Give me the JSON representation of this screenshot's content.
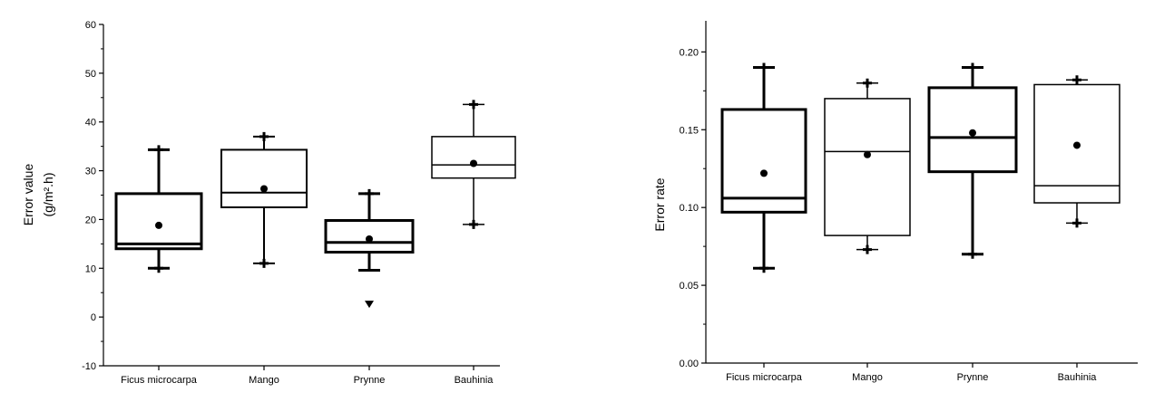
{
  "chart_data": [
    {
      "type": "box",
      "ylabel": "Error value",
      "ylabel_unit": "(g/m².h)",
      "ylim": [
        -10,
        60
      ],
      "yticks": [
        -10,
        0,
        10,
        20,
        30,
        40,
        50,
        60
      ],
      "ytick_labels": [
        "-10",
        "0",
        "10",
        "20",
        "30",
        "40",
        "50",
        "60"
      ],
      "categories": [
        "Ficus microcarpa",
        "Mango",
        "Prynne",
        "Bauhinia"
      ],
      "boxes": [
        {
          "q1": 14,
          "median": 15,
          "q3": 25.3,
          "mean": 18.8,
          "whisker_low": 10,
          "whisker_high": 34.3,
          "max_marker": 34.3,
          "min_marker": 10,
          "outliers": []
        },
        {
          "q1": 22.5,
          "median": 25.5,
          "q3": 34.3,
          "mean": 26.3,
          "whisker_low": 11,
          "whisker_high": 37,
          "max_marker": 37,
          "min_marker": 11,
          "outliers": []
        },
        {
          "q1": 13.3,
          "median": 15.3,
          "q3": 19.8,
          "mean": 16,
          "whisker_low": 9.6,
          "whisker_high": 25.3,
          "max_marker": 25.3,
          "min_marker": null,
          "outliers": [
            2.6
          ]
        },
        {
          "q1": 28.5,
          "median": 31.2,
          "q3": 37,
          "mean": 31.5,
          "whisker_low": 19,
          "whisker_high": 43.6,
          "max_marker": 43.6,
          "min_marker": 19,
          "outliers": []
        }
      ]
    },
    {
      "type": "box",
      "ylabel": "Error rate",
      "ylim": [
        0,
        0.22
      ],
      "yticks": [
        0,
        0.05,
        0.1,
        0.15,
        0.2
      ],
      "ytick_labels": [
        "0.00",
        "0.05",
        "0.10",
        "0.15",
        "0.20"
      ],
      "categories": [
        "Ficus microcarpa",
        "Mango",
        "Prynne",
        "Bauhinia"
      ],
      "boxes": [
        {
          "q1": 0.097,
          "median": 0.106,
          "q3": 0.163,
          "mean": 0.122,
          "whisker_low": 0.061,
          "whisker_high": 0.19,
          "max_marker": 0.19,
          "min_marker": 0.061,
          "outliers": []
        },
        {
          "q1": 0.082,
          "median": 0.136,
          "q3": 0.17,
          "mean": 0.134,
          "whisker_low": 0.073,
          "whisker_high": 0.18,
          "max_marker": 0.18,
          "min_marker": 0.073,
          "outliers": []
        },
        {
          "q1": 0.123,
          "median": 0.145,
          "q3": 0.177,
          "mean": 0.148,
          "whisker_low": 0.07,
          "whisker_high": 0.19,
          "max_marker": 0.19,
          "min_marker": 0.07,
          "outliers": []
        },
        {
          "q1": 0.103,
          "median": 0.114,
          "q3": 0.179,
          "mean": 0.14,
          "whisker_low": 0.09,
          "whisker_high": 0.182,
          "max_marker": 0.182,
          "min_marker": 0.09,
          "outliers": []
        }
      ]
    }
  ]
}
